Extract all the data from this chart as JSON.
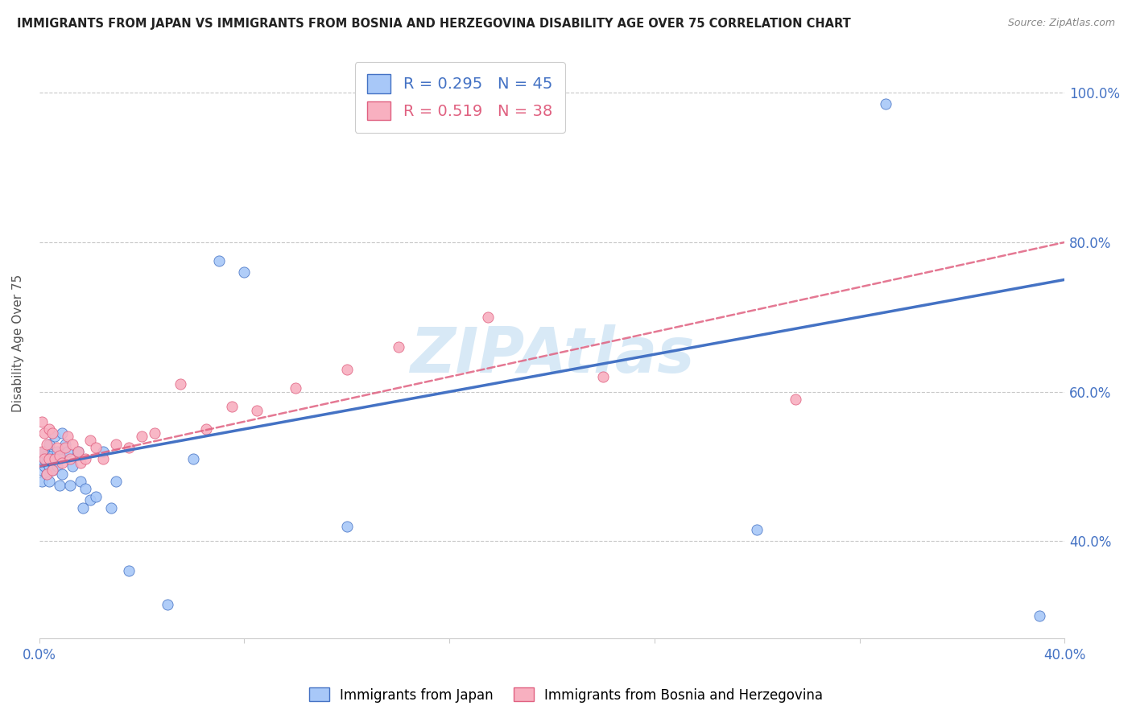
{
  "title": "IMMIGRANTS FROM JAPAN VS IMMIGRANTS FROM BOSNIA AND HERZEGOVINA DISABILITY AGE OVER 75 CORRELATION CHART",
  "source": "Source: ZipAtlas.com",
  "ylabel": "Disability Age Over 75",
  "legend_japan": "Immigrants from Japan",
  "legend_bosnia": "Immigrants from Bosnia and Herzegovina",
  "R_japan": 0.295,
  "N_japan": 45,
  "R_bosnia": 0.519,
  "N_bosnia": 38,
  "color_japan": "#a8c8f8",
  "color_japan_line": "#4472c4",
  "color_bosnia": "#f8b0c0",
  "color_bosnia_line": "#e06080",
  "watermark": "ZIPAtlas",
  "xlim": [
    0.0,
    0.4
  ],
  "ylim": [
    0.27,
    1.06
  ],
  "xtick_vals": [
    0.0,
    0.08,
    0.16,
    0.24,
    0.32,
    0.4
  ],
  "ytick_vals": [
    0.4,
    0.6,
    0.8,
    1.0
  ],
  "japan_x": [
    0.001,
    0.001,
    0.001,
    0.002,
    0.002,
    0.002,
    0.003,
    0.003,
    0.003,
    0.004,
    0.004,
    0.004,
    0.005,
    0.005,
    0.005,
    0.006,
    0.006,
    0.007,
    0.007,
    0.008,
    0.008,
    0.009,
    0.009,
    0.01,
    0.011,
    0.012,
    0.013,
    0.015,
    0.016,
    0.017,
    0.018,
    0.02,
    0.022,
    0.025,
    0.028,
    0.03,
    0.035,
    0.05,
    0.06,
    0.07,
    0.08,
    0.12,
    0.28,
    0.33,
    0.39
  ],
  "japan_y": [
    0.505,
    0.495,
    0.48,
    0.51,
    0.52,
    0.5,
    0.49,
    0.505,
    0.515,
    0.48,
    0.5,
    0.53,
    0.505,
    0.515,
    0.495,
    0.51,
    0.54,
    0.5,
    0.52,
    0.475,
    0.51,
    0.49,
    0.545,
    0.53,
    0.52,
    0.475,
    0.5,
    0.52,
    0.48,
    0.445,
    0.47,
    0.455,
    0.46,
    0.52,
    0.445,
    0.48,
    0.36,
    0.315,
    0.51,
    0.775,
    0.76,
    0.42,
    0.415,
    0.985,
    0.3
  ],
  "bosnia_x": [
    0.001,
    0.001,
    0.002,
    0.002,
    0.003,
    0.003,
    0.004,
    0.004,
    0.005,
    0.005,
    0.006,
    0.007,
    0.008,
    0.009,
    0.01,
    0.011,
    0.012,
    0.013,
    0.015,
    0.016,
    0.018,
    0.02,
    0.022,
    0.025,
    0.03,
    0.035,
    0.04,
    0.045,
    0.055,
    0.065,
    0.075,
    0.085,
    0.1,
    0.12,
    0.14,
    0.175,
    0.22,
    0.295
  ],
  "bosnia_y": [
    0.52,
    0.56,
    0.51,
    0.545,
    0.49,
    0.53,
    0.51,
    0.55,
    0.495,
    0.545,
    0.51,
    0.525,
    0.515,
    0.505,
    0.525,
    0.54,
    0.51,
    0.53,
    0.52,
    0.505,
    0.51,
    0.535,
    0.525,
    0.51,
    0.53,
    0.525,
    0.54,
    0.545,
    0.61,
    0.55,
    0.58,
    0.575,
    0.605,
    0.63,
    0.66,
    0.7,
    0.62,
    0.59
  ]
}
